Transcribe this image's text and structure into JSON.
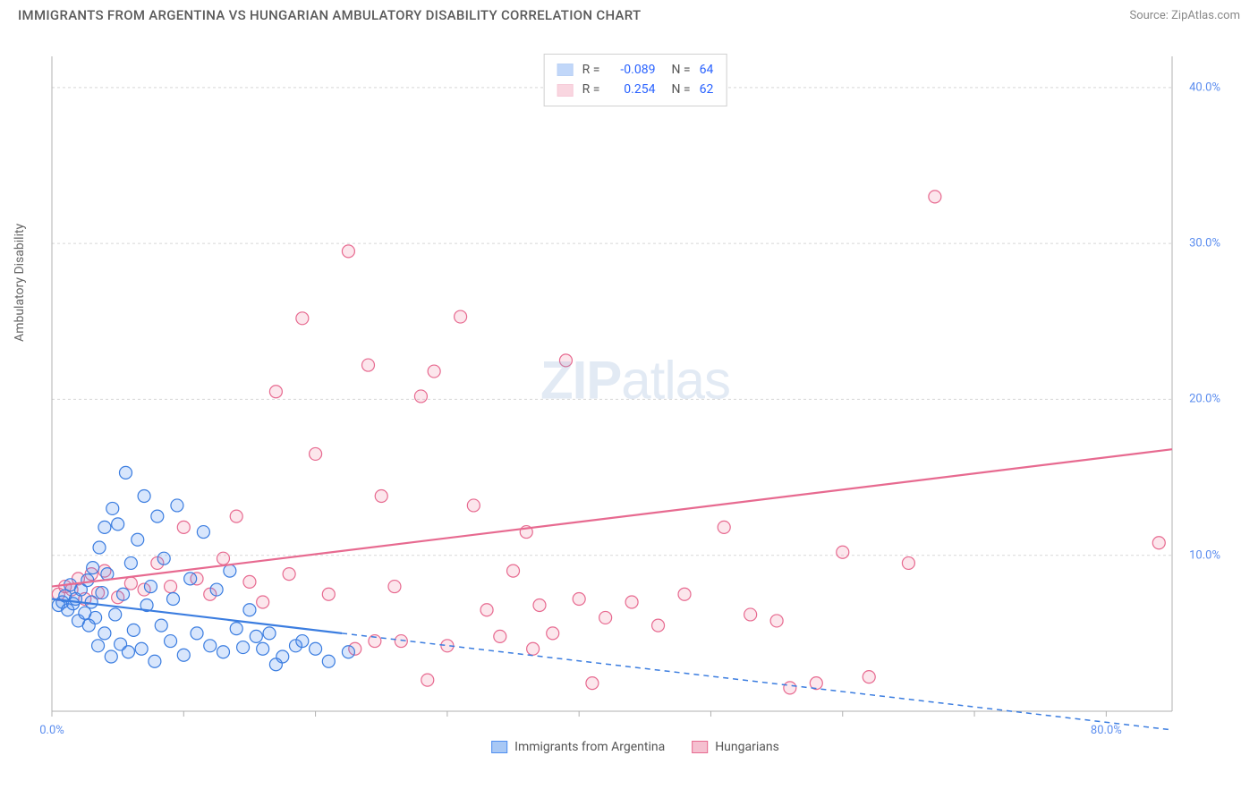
{
  "header": {
    "title": "IMMIGRANTS FROM ARGENTINA VS HUNGARIAN AMBULATORY DISABILITY CORRELATION CHART",
    "source_prefix": "Source: ",
    "source_name": "ZipAtlas.com"
  },
  "watermark": {
    "bold": "ZIP",
    "light": "atlas"
  },
  "chart": {
    "type": "scatter",
    "y_axis_label": "Ambulatory Disability",
    "background_color": "#ffffff",
    "grid_color": "#d8d8d8",
    "axis_color": "#b0b0b0",
    "xlim": [
      0,
      85
    ],
    "ylim": [
      0,
      42
    ],
    "x_ticks": [
      0,
      10,
      20,
      30,
      40,
      50,
      60,
      70,
      80
    ],
    "x_tick_labels": [
      "0.0%",
      "",
      "",
      "",
      "",
      "",
      "",
      "",
      "80.0%"
    ],
    "y_ticks": [
      10,
      20,
      30,
      40
    ],
    "y_tick_labels": [
      "10.0%",
      "20.0%",
      "30.0%",
      "40.0%"
    ],
    "marker_radius": 7,
    "marker_stroke_width": 1.2,
    "marker_fill_opacity": 0.22,
    "line_width": 2.2,
    "series": [
      {
        "id": "argentina",
        "label": "Immigrants from Argentina",
        "color": "#4f8ef0",
        "stroke": "#3b7de0",
        "r_label": "R =",
        "r_value": "-0.089",
        "n_label": "N =",
        "n_value": "64",
        "trend": {
          "x1": 0,
          "y1": 7.2,
          "x2": 22,
          "y2": 5.0,
          "dash_x2": 85,
          "dash_y2": -1.2
        },
        "points": [
          [
            0.5,
            6.8
          ],
          [
            0.8,
            7.0
          ],
          [
            1.0,
            7.4
          ],
          [
            1.2,
            6.5
          ],
          [
            1.4,
            8.1
          ],
          [
            1.6,
            6.9
          ],
          [
            1.8,
            7.2
          ],
          [
            2.0,
            5.8
          ],
          [
            2.2,
            7.8
          ],
          [
            2.5,
            6.3
          ],
          [
            2.7,
            8.4
          ],
          [
            2.8,
            5.5
          ],
          [
            3.0,
            7.0
          ],
          [
            3.1,
            9.2
          ],
          [
            3.3,
            6.0
          ],
          [
            3.5,
            4.2
          ],
          [
            3.6,
            10.5
          ],
          [
            3.8,
            7.6
          ],
          [
            4.0,
            5.0
          ],
          [
            4.0,
            11.8
          ],
          [
            4.2,
            8.8
          ],
          [
            4.5,
            3.5
          ],
          [
            4.6,
            13.0
          ],
          [
            4.8,
            6.2
          ],
          [
            5.0,
            12.0
          ],
          [
            5.2,
            4.3
          ],
          [
            5.4,
            7.5
          ],
          [
            5.6,
            15.3
          ],
          [
            5.8,
            3.8
          ],
          [
            6.0,
            9.5
          ],
          [
            6.2,
            5.2
          ],
          [
            6.5,
            11.0
          ],
          [
            6.8,
            4.0
          ],
          [
            7.0,
            13.8
          ],
          [
            7.2,
            6.8
          ],
          [
            7.5,
            8.0
          ],
          [
            7.8,
            3.2
          ],
          [
            8.0,
            12.5
          ],
          [
            8.3,
            5.5
          ],
          [
            8.5,
            9.8
          ],
          [
            9.0,
            4.5
          ],
          [
            9.2,
            7.2
          ],
          [
            9.5,
            13.2
          ],
          [
            10.0,
            3.6
          ],
          [
            10.5,
            8.5
          ],
          [
            11.0,
            5.0
          ],
          [
            11.5,
            11.5
          ],
          [
            12.0,
            4.2
          ],
          [
            12.5,
            7.8
          ],
          [
            13.0,
            3.8
          ],
          [
            13.5,
            9.0
          ],
          [
            14.0,
            5.3
          ],
          [
            14.5,
            4.1
          ],
          [
            15.0,
            6.5
          ],
          [
            15.5,
            4.8
          ],
          [
            16.0,
            4.0
          ],
          [
            16.5,
            5.0
          ],
          [
            17.5,
            3.5
          ],
          [
            18.5,
            4.2
          ],
          [
            20.0,
            4.0
          ],
          [
            21.0,
            3.2
          ],
          [
            22.5,
            3.8
          ],
          [
            17.0,
            3.0
          ],
          [
            19.0,
            4.5
          ]
        ]
      },
      {
        "id": "hungarians",
        "label": "Hungarians",
        "color": "#f08ca8",
        "stroke": "#e76a90",
        "r_label": "R =",
        "r_value": "0.254",
        "n_label": "N =",
        "n_value": "62",
        "trend": {
          "x1": 0,
          "y1": 8.0,
          "x2": 85,
          "y2": 16.8
        },
        "points": [
          [
            0.5,
            7.5
          ],
          [
            1.0,
            8.0
          ],
          [
            1.5,
            7.8
          ],
          [
            2.0,
            8.5
          ],
          [
            2.5,
            7.2
          ],
          [
            3.0,
            8.8
          ],
          [
            3.5,
            7.6
          ],
          [
            4.0,
            9.0
          ],
          [
            5.0,
            7.3
          ],
          [
            6.0,
            8.2
          ],
          [
            7.0,
            7.8
          ],
          [
            8.0,
            9.5
          ],
          [
            9.0,
            8.0
          ],
          [
            10.0,
            11.8
          ],
          [
            11.0,
            8.5
          ],
          [
            12.0,
            7.5
          ],
          [
            13.0,
            9.8
          ],
          [
            14.0,
            12.5
          ],
          [
            15.0,
            8.3
          ],
          [
            16.0,
            7.0
          ],
          [
            17.0,
            20.5
          ],
          [
            18.0,
            8.8
          ],
          [
            19.0,
            25.2
          ],
          [
            20.0,
            16.5
          ],
          [
            21.0,
            7.5
          ],
          [
            22.5,
            29.5
          ],
          [
            23.0,
            4.0
          ],
          [
            24.0,
            22.2
          ],
          [
            25.0,
            13.8
          ],
          [
            26.0,
            8.0
          ],
          [
            26.5,
            4.5
          ],
          [
            28.0,
            20.2
          ],
          [
            29.0,
            21.8
          ],
          [
            30.0,
            4.2
          ],
          [
            31.0,
            25.3
          ],
          [
            32.0,
            13.2
          ],
          [
            33.0,
            6.5
          ],
          [
            34.0,
            4.8
          ],
          [
            35.0,
            9.0
          ],
          [
            36.0,
            11.5
          ],
          [
            37.0,
            6.8
          ],
          [
            38.0,
            5.0
          ],
          [
            39.0,
            22.5
          ],
          [
            40.0,
            7.2
          ],
          [
            41.0,
            1.8
          ],
          [
            42.0,
            6.0
          ],
          [
            44.0,
            7.0
          ],
          [
            46.0,
            5.5
          ],
          [
            51.0,
            11.8
          ],
          [
            53.0,
            6.2
          ],
          [
            55.0,
            5.8
          ],
          [
            56.0,
            1.5
          ],
          [
            60.0,
            10.2
          ],
          [
            62.0,
            2.2
          ],
          [
            65.0,
            9.5
          ],
          [
            67.0,
            33.0
          ],
          [
            84.0,
            10.8
          ],
          [
            28.5,
            2.0
          ],
          [
            24.5,
            4.5
          ],
          [
            36.5,
            4.0
          ],
          [
            48.0,
            7.5
          ],
          [
            58.0,
            1.8
          ]
        ]
      }
    ],
    "legend_bottom": [
      {
        "label": "Immigrants from Argentina",
        "fill": "#a8c8f5",
        "stroke": "#4f8ef0"
      },
      {
        "label": "Hungarians",
        "fill": "#f5c0d0",
        "stroke": "#e76a90"
      }
    ]
  }
}
